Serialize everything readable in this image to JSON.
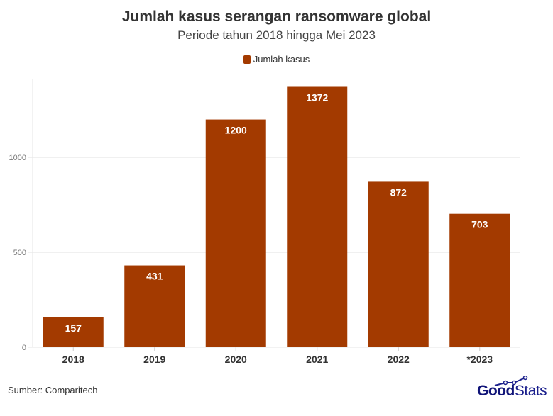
{
  "chart_data": {
    "type": "bar",
    "title": "Jumlah kasus serangan ransomware global",
    "subtitle": "Periode tahun 2018 hingga Mei 2023",
    "categories": [
      "2018",
      "2019",
      "2020",
      "2021",
      "2022",
      "*2023"
    ],
    "series": [
      {
        "name": "Jumlah kasus",
        "values": [
          157,
          431,
          1200,
          1372,
          872,
          703
        ],
        "color": "#a33a00"
      }
    ],
    "ylim": [
      0,
      1400
    ],
    "yticks": [
      0,
      500,
      1000
    ],
    "grid": true,
    "legend": "top-center",
    "data_labels": true
  },
  "footer": {
    "source": "Sumber: Comparitech",
    "logo_bold": "Good",
    "logo_light": "Stats"
  }
}
